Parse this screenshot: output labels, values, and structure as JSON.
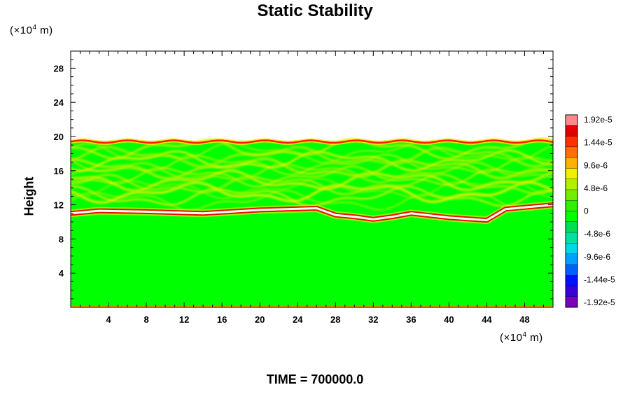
{
  "chart_data": {
    "type": "heatmap",
    "title": "Static Stability",
    "ylabel": "Height",
    "x_unit_prefix": "(×10",
    "x_unit_exp": "4",
    "x_unit_suffix": " m)",
    "y_unit_prefix": "(×10",
    "y_unit_exp": "4",
    "y_unit_suffix": " m)",
    "xlim": [
      0,
      51
    ],
    "ylim": [
      0,
      30
    ],
    "x_ticks": [
      4,
      8,
      12,
      16,
      20,
      24,
      28,
      32,
      36,
      40,
      44,
      48
    ],
    "y_ticks": [
      4,
      8,
      12,
      16,
      20,
      24,
      28
    ],
    "colorbar": {
      "range": [
        -1.92e-05,
        1.92e-05
      ],
      "labels": [
        "1.92e-5",
        "1.44e-5",
        "9.6e-6",
        "4.8e-6",
        "0",
        "-4.8e-6",
        "-9.6e-6",
        "-1.44e-5",
        "-1.92e-5"
      ],
      "colors": [
        "#7a00b8",
        "#3a00d8",
        "#0010ff",
        "#0060ff",
        "#00a0ff",
        "#00d8e8",
        "#00e0a0",
        "#00e050",
        "#00ff00",
        "#30f000",
        "#70f000",
        "#b0f000",
        "#f0f000",
        "#ffb000",
        "#ff7000",
        "#ff3000",
        "#e00000",
        "#ff8888"
      ]
    },
    "field": {
      "background": "#00ff00",
      "top_of_field_height": 19.5,
      "lower_layer_heights": [
        [
          0,
          11.0
        ],
        [
          3,
          11.3
        ],
        [
          8,
          11.2
        ],
        [
          14,
          11.0
        ],
        [
          20,
          11.4
        ],
        [
          26,
          11.6
        ],
        [
          28,
          10.8
        ],
        [
          30,
          10.6
        ],
        [
          32,
          10.3
        ],
        [
          34,
          10.6
        ],
        [
          36,
          11.0
        ],
        [
          40,
          10.5
        ],
        [
          44,
          10.2
        ],
        [
          46,
          11.5
        ],
        [
          51,
          12.0
        ]
      ]
    }
  },
  "time_label": "TIME = 700000.0"
}
